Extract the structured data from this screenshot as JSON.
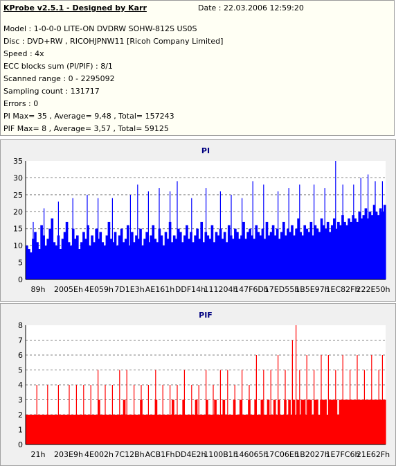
{
  "info": {
    "app_title": "KProbe v2.5.1 - Designed by Karr",
    "date": "Date : 22.03.2006 12:59:20",
    "lines": [
      "Model : 1-0-0-0 LITE-ON DVDRW SOHW-812S  US0S",
      "Disc : DVD+RW , RICOHJPNW11 [Ricoh Company Limited]",
      "Speed : 4x",
      "ECC blocks sum (PI/PIF) : 8/1",
      "Scanned range : 0 - 2295092",
      "Sampling count : 131717",
      "Errors : 0",
      "PI Max= 35 , Average= 9,48 , Total= 157243",
      "PIF Max= 8 , Average= 3,57 , Total= 59125"
    ]
  },
  "chart_data": [
    {
      "type": "bar",
      "title": "PI",
      "color": "#0000ff",
      "ylim": [
        0,
        35
      ],
      "yticks": [
        0,
        5,
        10,
        15,
        20,
        25,
        30,
        35
      ],
      "grid": true,
      "x_tick_labels": [
        "89h",
        "2005Eh",
        "4E059h",
        "7D1E3h",
        "AE161h",
        "DDF14h",
        "111204h",
        "147F6Dh",
        "17ED55h",
        "1B5E97h",
        "1EC82Fh",
        "222E50h"
      ],
      "values": [
        10,
        9,
        8,
        12,
        14,
        11,
        9,
        16,
        13,
        10,
        12,
        15,
        18,
        11,
        10,
        13,
        9,
        12,
        14,
        17,
        11,
        10,
        15,
        12,
        13,
        9,
        11,
        14,
        12,
        16,
        10,
        13,
        11,
        15,
        12,
        14,
        11,
        10,
        13,
        17,
        12,
        11,
        14,
        10,
        13,
        15,
        11,
        12,
        16,
        10,
        14,
        11,
        13,
        12,
        15,
        10,
        12,
        14,
        11,
        13,
        16,
        12,
        11,
        15,
        13,
        10,
        14,
        12,
        17,
        11,
        13,
        12,
        15,
        14,
        11,
        13,
        16,
        12,
        14,
        11,
        13,
        15,
        12,
        17,
        11,
        14,
        13,
        12,
        16,
        11,
        14,
        13,
        15,
        12,
        14,
        11,
        16,
        13,
        12,
        15,
        14,
        12,
        13,
        17,
        12,
        14,
        15,
        13,
        12,
        16,
        14,
        13,
        15,
        12,
        17,
        13,
        14,
        16,
        13,
        15,
        12,
        14,
        17,
        13,
        15,
        14,
        16,
        13,
        15,
        18,
        14,
        13,
        16,
        15,
        14,
        17,
        13,
        16,
        15,
        14,
        18,
        16,
        15,
        17,
        14,
        16,
        18,
        15,
        17,
        16,
        19,
        17,
        16,
        18,
        17,
        19,
        18,
        17,
        20,
        18,
        19,
        21,
        18,
        20,
        19,
        22,
        20,
        19,
        21,
        20,
        22
      ],
      "spikes": [
        [
          0.02,
          17
        ],
        [
          0.05,
          21
        ],
        [
          0.09,
          23
        ],
        [
          0.13,
          24
        ],
        [
          0.17,
          25
        ],
        [
          0.2,
          24
        ],
        [
          0.24,
          24
        ],
        [
          0.29,
          25
        ],
        [
          0.31,
          28
        ],
        [
          0.34,
          26
        ],
        [
          0.37,
          27
        ],
        [
          0.4,
          26
        ],
        [
          0.42,
          29
        ],
        [
          0.46,
          24
        ],
        [
          0.5,
          27
        ],
        [
          0.54,
          26
        ],
        [
          0.57,
          25
        ],
        [
          0.6,
          24
        ],
        [
          0.63,
          29
        ],
        [
          0.66,
          28
        ],
        [
          0.7,
          26
        ],
        [
          0.73,
          27
        ],
        [
          0.76,
          28
        ],
        [
          0.8,
          28
        ],
        [
          0.83,
          27
        ],
        [
          0.86,
          35
        ],
        [
          0.88,
          28
        ],
        [
          0.91,
          28
        ],
        [
          0.93,
          30
        ],
        [
          0.95,
          31
        ],
        [
          0.97,
          29
        ],
        [
          0.99,
          29
        ]
      ]
    },
    {
      "type": "bar",
      "title": "PIF",
      "color": "#ff0000",
      "ylim": [
        0,
        8
      ],
      "yticks": [
        0,
        1,
        2,
        3,
        4,
        5,
        6,
        7,
        8
      ],
      "grid": true,
      "x_tick_labels": [
        "21h",
        "203E9h",
        "4E002h",
        "7C12Bh",
        "ACB1Fh",
        "DD4E2h",
        "1100B1h",
        "146065h",
        "17C06Eh",
        "1B2027h",
        "1E7FC6h",
        "21E62Fh"
      ],
      "values": [
        2,
        2,
        2,
        2,
        2,
        2,
        2,
        2,
        2,
        2,
        2,
        2,
        2,
        2,
        2,
        2,
        2,
        2,
        2,
        2,
        2,
        2,
        2,
        2,
        2,
        2,
        2,
        2,
        2,
        2,
        2,
        2,
        2,
        2,
        3,
        2,
        2,
        2,
        2,
        2,
        2,
        2,
        2,
        2,
        2,
        2,
        3,
        2,
        2,
        2,
        2,
        2,
        2,
        2,
        3,
        2,
        2,
        2,
        2,
        2,
        2,
        3,
        2,
        2,
        2,
        2,
        2,
        2,
        2,
        3,
        2,
        2,
        2,
        2,
        3,
        2,
        2,
        2,
        2,
        2,
        3,
        2,
        2,
        2,
        2,
        3,
        2,
        2,
        2,
        3,
        2,
        2,
        2,
        3,
        2,
        2,
        2,
        2,
        3,
        2,
        2,
        3,
        2,
        2,
        2,
        3,
        2,
        2,
        3,
        2,
        2,
        3,
        2,
        2,
        3,
        2,
        2,
        3,
        2,
        3,
        2,
        2,
        3,
        2,
        3,
        2,
        3,
        2,
        3,
        2,
        3,
        3,
        2,
        3,
        3,
        2,
        3,
        3,
        2,
        3,
        3,
        3,
        2,
        3,
        3,
        3,
        3,
        2,
        3,
        3,
        3,
        3,
        3,
        3,
        3,
        3,
        3,
        3,
        3,
        3,
        3,
        3,
        3,
        3,
        3,
        3,
        3,
        3,
        3,
        3
      ],
      "spikes": [
        [
          0.03,
          4
        ],
        [
          0.06,
          4
        ],
        [
          0.09,
          4
        ],
        [
          0.12,
          4
        ],
        [
          0.14,
          4
        ],
        [
          0.16,
          4
        ],
        [
          0.18,
          4
        ],
        [
          0.2,
          4
        ],
        [
          0.22,
          4
        ],
        [
          0.24,
          4
        ],
        [
          0.26,
          5
        ],
        [
          0.28,
          5
        ],
        [
          0.3,
          4
        ],
        [
          0.32,
          4
        ],
        [
          0.34,
          4
        ],
        [
          0.36,
          5
        ],
        [
          0.38,
          4
        ],
        [
          0.4,
          4
        ],
        [
          0.42,
          4
        ],
        [
          0.44,
          5
        ],
        [
          0.46,
          4
        ],
        [
          0.48,
          4
        ],
        [
          0.5,
          5
        ],
        [
          0.52,
          4
        ],
        [
          0.54,
          5
        ],
        [
          0.56,
          5
        ],
        [
          0.58,
          4
        ],
        [
          0.6,
          5
        ],
        [
          0.62,
          4
        ],
        [
          0.64,
          5
        ],
        [
          0.66,
          5
        ],
        [
          0.68,
          5
        ],
        [
          0.7,
          6
        ],
        [
          0.72,
          5
        ],
        [
          0.74,
          6
        ],
        [
          0.76,
          5
        ],
        [
          0.78,
          6
        ],
        [
          0.8,
          5
        ],
        [
          0.82,
          6
        ],
        [
          0.84,
          6
        ],
        [
          0.86,
          5
        ],
        [
          0.88,
          6
        ],
        [
          0.9,
          5
        ],
        [
          0.92,
          6
        ],
        [
          0.94,
          5
        ],
        [
          0.96,
          6
        ],
        [
          0.98,
          5
        ],
        [
          0.99,
          6
        ],
        [
          0.2,
          5
        ],
        [
          0.64,
          6
        ],
        [
          0.74,
          7
        ],
        [
          0.75,
          8
        ]
      ]
    }
  ]
}
